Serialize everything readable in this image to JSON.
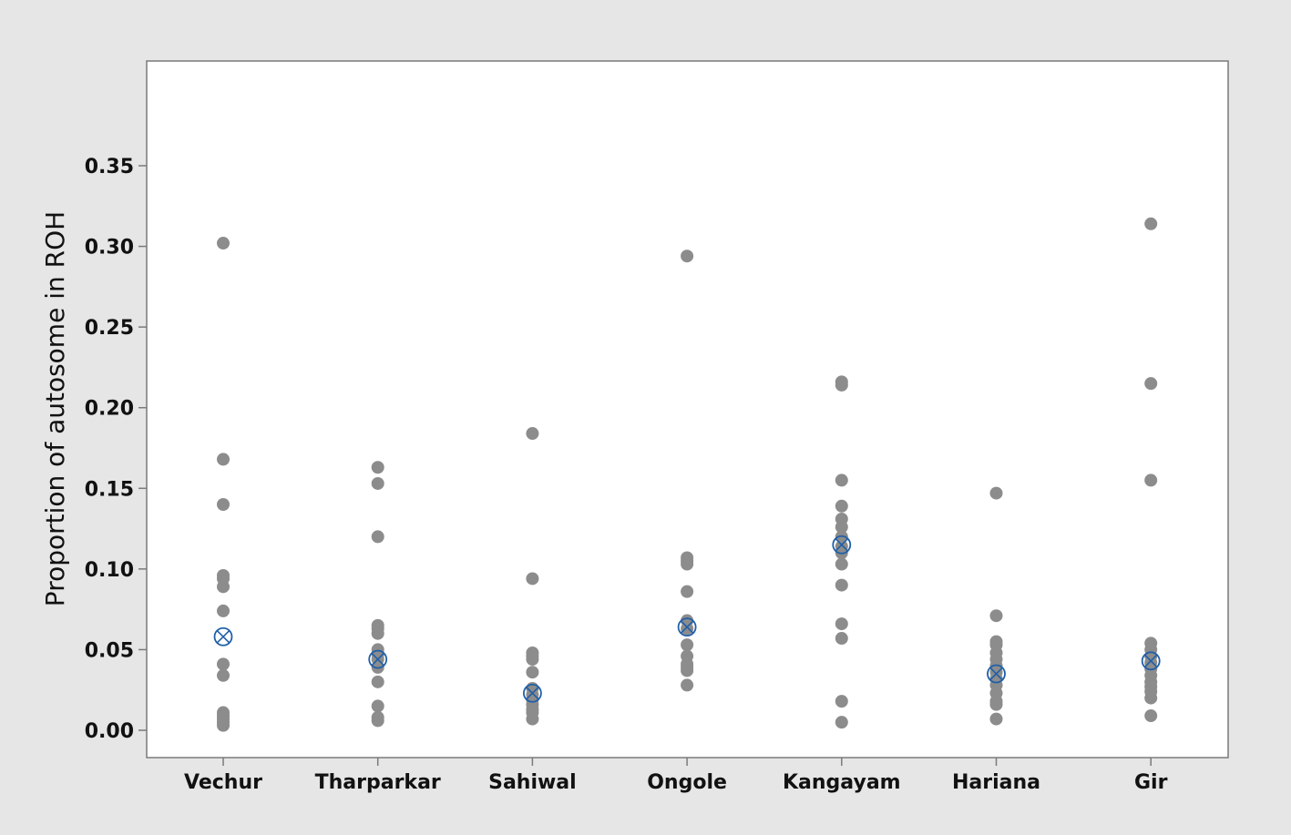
{
  "chart_data": {
    "type": "scatter",
    "title": "",
    "xlabel": "",
    "ylabel": "Proportion of autosome in ROH",
    "ylim": [
      0.0,
      0.35
    ],
    "yticks": [
      0.0,
      0.05,
      0.1,
      0.15,
      0.2,
      0.25,
      0.3,
      0.35
    ],
    "ytick_labels": [
      "0.00",
      "0.05",
      "0.10",
      "0.15",
      "0.20",
      "0.25",
      "0.30",
      "0.35"
    ],
    "categories": [
      "Vechur",
      "Tharparkar",
      "Sahiwal",
      "Ongole",
      "Kangayam",
      "Hariana",
      "Gir"
    ],
    "grid": false,
    "legend": "none",
    "colors": {
      "point": "#8c8c8c",
      "mean_marker": "#1f5fa8",
      "outer_background": "#e6e6e6",
      "plot_background": "#ffffff",
      "axis": "#7a7a7a"
    },
    "series": [
      {
        "values": [
          [
            0.302,
            0.168,
            0.14,
            0.096,
            0.094,
            0.089,
            0.074,
            0.041,
            0.034,
            0.011,
            0.009,
            0.007,
            0.005,
            0.003
          ],
          [
            0.163,
            0.153,
            0.12,
            0.065,
            0.063,
            0.06,
            0.05,
            0.047,
            0.044,
            0.039,
            0.03,
            0.015,
            0.008,
            0.006
          ],
          [
            0.184,
            0.094,
            0.048,
            0.046,
            0.044,
            0.036,
            0.026,
            0.022,
            0.019,
            0.016,
            0.013,
            0.011,
            0.007
          ],
          [
            0.294,
            0.107,
            0.105,
            0.103,
            0.086,
            0.068,
            0.063,
            0.053,
            0.046,
            0.041,
            0.039,
            0.037,
            0.028
          ],
          [
            0.216,
            0.214,
            0.155,
            0.139,
            0.131,
            0.126,
            0.12,
            0.114,
            0.11,
            0.103,
            0.09,
            0.066,
            0.057,
            0.018,
            0.005
          ],
          [
            0.147,
            0.071,
            0.055,
            0.053,
            0.048,
            0.044,
            0.04,
            0.036,
            0.032,
            0.028,
            0.023,
            0.018,
            0.016,
            0.007
          ],
          [
            0.314,
            0.215,
            0.155,
            0.054,
            0.05,
            0.046,
            0.042,
            0.038,
            0.034,
            0.03,
            0.027,
            0.024,
            0.02,
            0.009
          ]
        ]
      },
      {
        "values": [
          0.058,
          0.044,
          0.023,
          0.064,
          0.115,
          0.035,
          0.043
        ]
      }
    ]
  }
}
